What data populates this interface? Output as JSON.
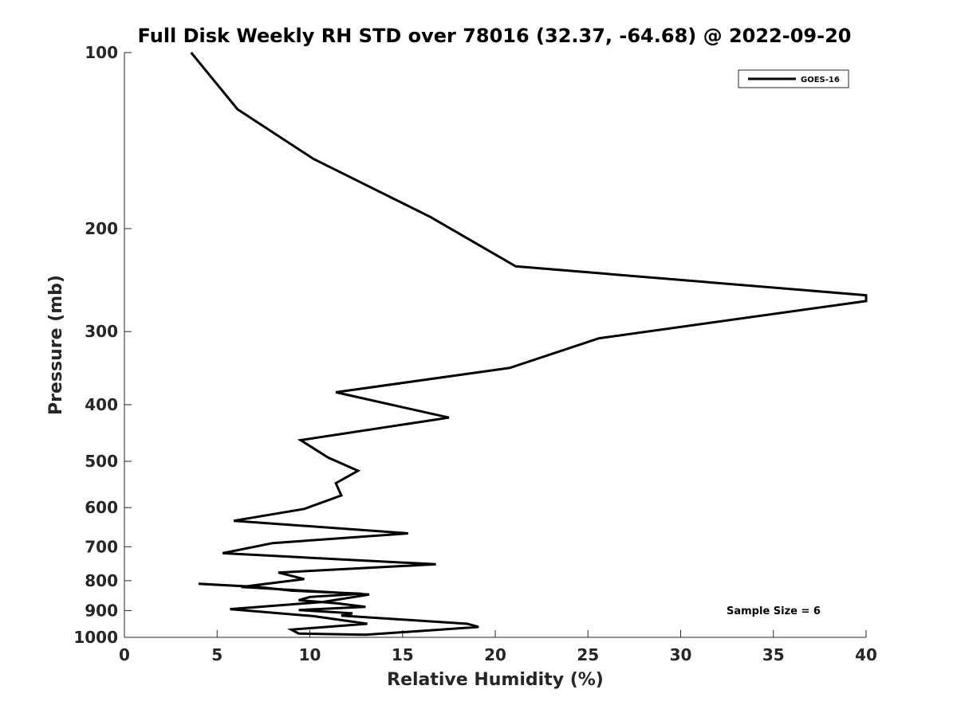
{
  "chart_data": {
    "type": "line",
    "title": "Full Disk Weekly RH STD over 78016 (32.37, -64.68) @ 2022-09-20",
    "xlabel": "Relative Humidity (%)",
    "ylabel": "Pressure (mb)",
    "xlim": [
      0,
      40
    ],
    "ylim": [
      100,
      1000
    ],
    "y_scale": "log",
    "y_reversed": true,
    "x_ticks": [
      0,
      5,
      10,
      15,
      20,
      25,
      30,
      35,
      40
    ],
    "y_ticks": [
      100,
      200,
      300,
      400,
      500,
      600,
      700,
      800,
      900,
      1000
    ],
    "grid": false,
    "legend": {
      "position": "top-right",
      "entries": [
        "GOES-16"
      ]
    },
    "annotation": "Sample Size = 6",
    "series": [
      {
        "name": "GOES-16",
        "color": "#000000",
        "points": [
          [
            3.6,
            100
          ],
          [
            6.1,
            125
          ],
          [
            10.2,
            152
          ],
          [
            16.5,
            191
          ],
          [
            21.1,
            232
          ],
          [
            40.0,
            260
          ],
          [
            40.0,
            266
          ],
          [
            25.6,
            308
          ],
          [
            20.8,
            346
          ],
          [
            11.4,
            381
          ],
          [
            17.5,
            421
          ],
          [
            9.5,
            460
          ],
          [
            11.0,
            493
          ],
          [
            12.6,
            519
          ],
          [
            11.4,
            545
          ],
          [
            11.7,
            572
          ],
          [
            9.7,
            603
          ],
          [
            5.9,
            632
          ],
          [
            15.3,
            664
          ],
          [
            8.0,
            690
          ],
          [
            5.3,
            718
          ],
          [
            16.8,
            750
          ],
          [
            8.3,
            775
          ],
          [
            9.7,
            795
          ],
          [
            6.3,
            820
          ],
          [
            13.2,
            845
          ],
          [
            10.7,
            870
          ],
          [
            5.7,
            895
          ],
          [
            10.2,
            920
          ],
          [
            13.1,
            948
          ],
          [
            9.0,
            970
          ],
          [
            9.4,
            985
          ],
          [
            13.0,
            990
          ],
          [
            19.1,
            960
          ],
          [
            18.5,
            948
          ],
          [
            11.7,
            918
          ],
          [
            12.3,
            910
          ],
          [
            9.4,
            898
          ],
          [
            13.0,
            887
          ],
          [
            11.5,
            875
          ],
          [
            9.4,
            864
          ],
          [
            10.0,
            853
          ],
          [
            12.8,
            842
          ],
          [
            9.0,
            832
          ],
          [
            7.2,
            820
          ],
          [
            4.0,
            810
          ]
        ]
      }
    ]
  }
}
